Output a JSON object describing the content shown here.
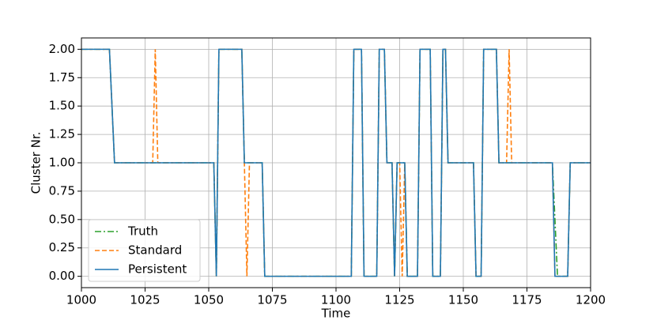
{
  "chart_data": {
    "type": "line",
    "xlabel": "Time",
    "ylabel": "Cluster Nr.",
    "xlim": [
      1000,
      1200
    ],
    "ylim": [
      -0.1,
      2.1
    ],
    "xticks": [
      1000,
      1025,
      1050,
      1075,
      1100,
      1125,
      1150,
      1175,
      1200
    ],
    "yticks": [
      {
        "value": 0,
        "label": "0.00"
      },
      {
        "value": 0.25,
        "label": "0.25"
      },
      {
        "value": 0.5,
        "label": "0.50"
      },
      {
        "value": 0.75,
        "label": "0.75"
      },
      {
        "value": 1,
        "label": "1.00"
      },
      {
        "value": 1.25,
        "label": "1.25"
      },
      {
        "value": 1.5,
        "label": "1.50"
      },
      {
        "value": 1.75,
        "label": "1.75"
      },
      {
        "value": 2,
        "label": "2.00"
      }
    ],
    "grid": true,
    "legend": "lower left",
    "series": [
      {
        "name": "Truth",
        "color": "#2ca02c",
        "linestyle": "dashdot",
        "x": [
          1000,
          1011,
          1013,
          1052,
          1053,
          1054,
          1063,
          1064,
          1071,
          1072,
          1106,
          1107,
          1110,
          1111,
          1116,
          1117,
          1119,
          1120,
          1122,
          1123,
          1124,
          1127,
          1128,
          1132,
          1133,
          1137,
          1138,
          1141,
          1142,
          1143,
          1144,
          1154,
          1155,
          1157,
          1158,
          1163,
          1164,
          1185,
          1187,
          1191,
          1192,
          1200
        ],
        "values": [
          2,
          2,
          1,
          1,
          0,
          2,
          2,
          1,
          1,
          0,
          0,
          2,
          2,
          0,
          0,
          2,
          2,
          1,
          1,
          0,
          1,
          1,
          0,
          0,
          2,
          2,
          0,
          0,
          2,
          2,
          1,
          1,
          0,
          0,
          2,
          2,
          1,
          1,
          0,
          0,
          1,
          1
        ]
      },
      {
        "name": "Standard",
        "color": "#ff7f0e",
        "linestyle": "dashed",
        "x": [
          1000,
          1011,
          1013,
          1028,
          1029,
          1030,
          1052,
          1053,
          1054,
          1063,
          1064,
          1065,
          1066,
          1071,
          1072,
          1106,
          1107,
          1110,
          1111,
          1116,
          1117,
          1119,
          1120,
          1122,
          1123,
          1124,
          1125,
          1126,
          1127,
          1128,
          1132,
          1133,
          1137,
          1138,
          1141,
          1142,
          1143,
          1144,
          1154,
          1155,
          1157,
          1158,
          1163,
          1164,
          1167,
          1168,
          1169,
          1185,
          1186,
          1191,
          1192,
          1200
        ],
        "values": [
          2,
          2,
          1,
          1,
          2,
          1,
          1,
          0,
          2,
          2,
          1,
          0,
          1,
          1,
          0,
          0,
          2,
          2,
          0,
          0,
          2,
          2,
          1,
          1,
          0,
          1,
          1,
          0,
          1,
          0,
          0,
          2,
          2,
          0,
          0,
          2,
          2,
          1,
          1,
          0,
          0,
          2,
          2,
          1,
          1,
          2,
          1,
          1,
          0,
          0,
          1,
          1
        ]
      },
      {
        "name": "Persistent",
        "color": "#1f77b4",
        "linestyle": "solid",
        "x": [
          1000,
          1011,
          1013,
          1052,
          1053,
          1054,
          1063,
          1064,
          1071,
          1072,
          1106,
          1107,
          1110,
          1111,
          1116,
          1117,
          1119,
          1120,
          1122,
          1123,
          1124,
          1127,
          1128,
          1132,
          1133,
          1137,
          1138,
          1141,
          1142,
          1143,
          1144,
          1154,
          1155,
          1157,
          1158,
          1163,
          1164,
          1185,
          1186,
          1191,
          1192,
          1200
        ],
        "values": [
          2,
          2,
          1,
          1,
          0,
          2,
          2,
          1,
          1,
          0,
          0,
          2,
          2,
          0,
          0,
          2,
          2,
          1,
          1,
          0,
          1,
          1,
          0,
          0,
          2,
          2,
          0,
          0,
          2,
          2,
          1,
          1,
          0,
          0,
          2,
          2,
          1,
          1,
          0,
          0,
          1,
          1
        ]
      }
    ]
  }
}
